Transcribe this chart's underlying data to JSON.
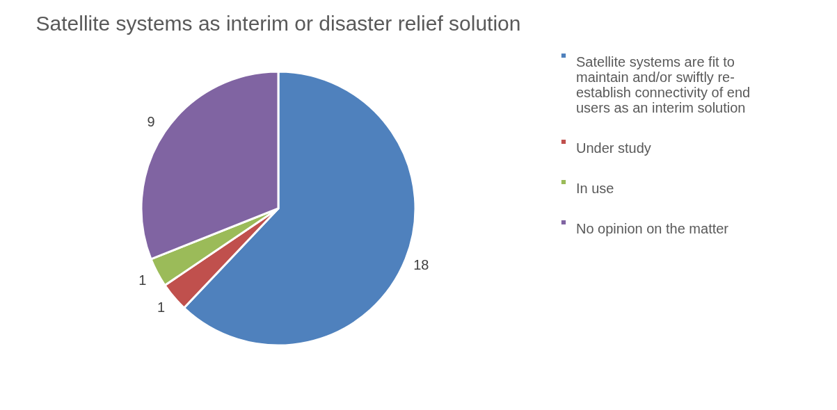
{
  "chart_data": {
    "type": "pie",
    "title": "Satellite systems as interim or disaster relief solution",
    "categories": [
      "Satellite systems are fit to maintain and/or swiftly re-establish connectivity of end users as an interim solution",
      "Under study",
      "In use",
      "No opinion on the matter"
    ],
    "values": [
      18,
      1,
      1,
      9
    ],
    "colors": [
      "#4f81bd",
      "#c0504d",
      "#9bbb59",
      "#8064a2"
    ],
    "data_labels": true,
    "legend": "right"
  }
}
